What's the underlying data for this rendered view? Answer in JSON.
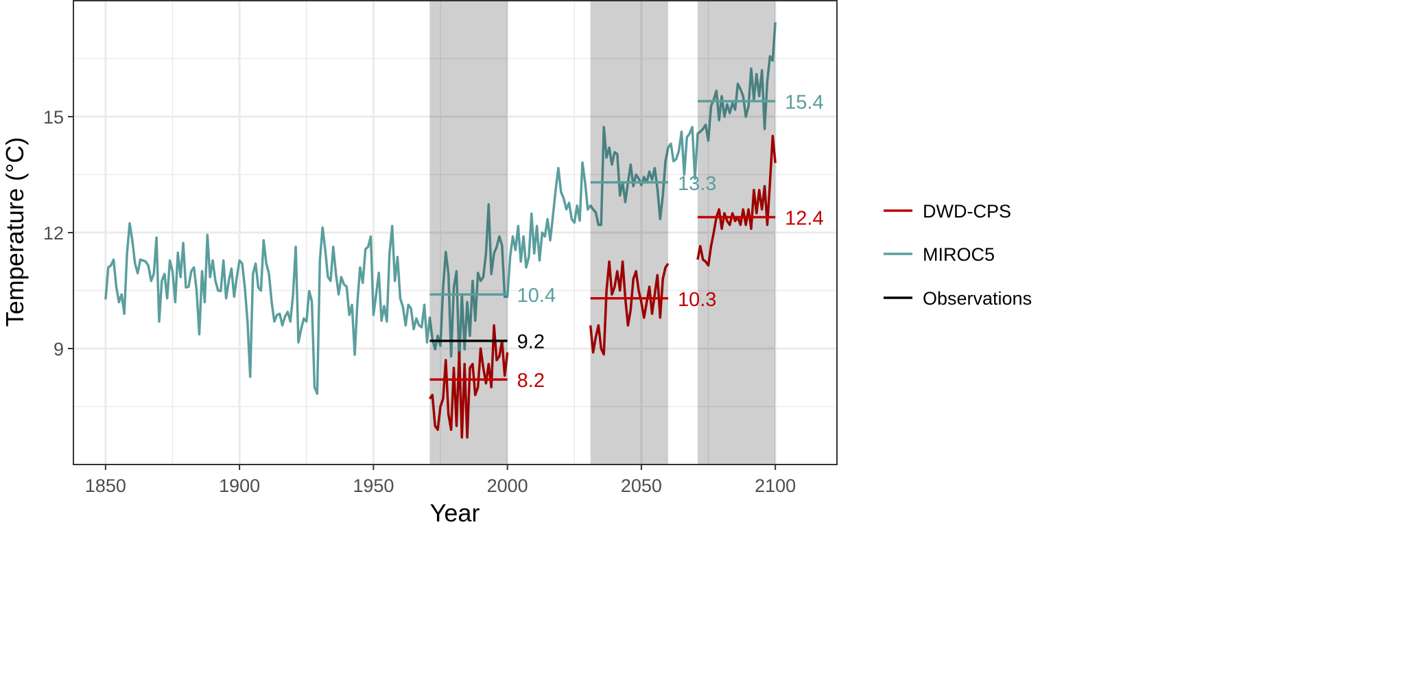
{
  "chart_data": {
    "type": "line",
    "title": "",
    "xlabel": "Year",
    "ylabel": "Temperature (°C)",
    "xlim": [
      1838,
      2123
    ],
    "ylim": [
      6.0,
      18.0
    ],
    "x_ticks": [
      1850,
      1900,
      1950,
      2000,
      2050,
      2100
    ],
    "x_tick_labels": [
      "1850",
      "1900",
      "1950",
      "2000",
      "2050",
      "2100"
    ],
    "y_ticks": [
      9,
      12,
      15
    ],
    "y_tick_labels": [
      "9",
      "12",
      "15"
    ],
    "grid": true,
    "legend_position": "right",
    "colors": {
      "DWD-CPS": "#c00000",
      "MIROC5": "#5b9e9e",
      "Observations": "#000000"
    },
    "shaded_periods": [
      [
        1971,
        2000
      ],
      [
        2031,
        2060
      ],
      [
        2071,
        2100
      ]
    ],
    "series": [
      {
        "name": "DWD-CPS",
        "segments": [
          {
            "start_year": 1971,
            "values": [
              7.7,
              7.8,
              7.0,
              6.9,
              7.5,
              7.7,
              8.7,
              7.3,
              6.9,
              8.5,
              7.0,
              8.9,
              6.7,
              8.6,
              6.7,
              8.5,
              8.6,
              7.8,
              8.0,
              9.0,
              8.5,
              8.1,
              8.6,
              8.0,
              9.6,
              8.7,
              8.8,
              9.2,
              8.3,
              8.9
            ]
          },
          {
            "start_year": 2031,
            "values": [
              9.6,
              8.9,
              9.3,
              9.6,
              9.0,
              8.85,
              10.5,
              11.25,
              10.4,
              10.6,
              11.0,
              10.5,
              11.25,
              10.3,
              9.6,
              10.0,
              10.8,
              11.0,
              10.5,
              10.2,
              9.8,
              10.2,
              10.6,
              9.9,
              10.4,
              10.9,
              9.8,
              10.8,
              11.1,
              11.2
            ]
          },
          {
            "start_year": 2071,
            "values": [
              11.3,
              11.65,
              11.3,
              11.25,
              11.15,
              11.65,
              12.0,
              12.4,
              12.6,
              12.1,
              12.5,
              12.3,
              12.2,
              12.5,
              12.3,
              12.4,
              12.2,
              12.6,
              12.2,
              12.6,
              12.1,
              13.1,
              12.5,
              13.1,
              12.6,
              13.2,
              12.2,
              13.3,
              14.5,
              13.8
            ]
          }
        ]
      },
      {
        "name": "MIROC5",
        "segments": [
          {
            "start_year": 1850,
            "values": [
              10.27,
              11.1,
              11.15,
              11.3,
              10.6,
              10.2,
              10.4,
              9.9,
              11.45,
              12.24,
              11.8,
              11.2,
              10.95,
              11.3,
              11.28,
              11.25,
              11.14,
              10.75,
              10.93,
              11.87,
              9.7,
              10.75,
              10.93,
              10.3,
              11.28,
              11.0,
              10.2,
              11.48,
              10.85,
              11.73,
              10.58,
              10.6,
              11.0,
              11.1,
              10.5,
              9.37,
              11.0,
              10.2,
              11.94,
              10.85,
              11.28,
              10.75,
              10.5,
              10.49,
              11.28,
              10.3,
              10.75,
              11.07,
              10.34,
              10.85,
              11.28,
              11.2,
              10.58,
              9.7,
              8.27,
              10.93,
              11.2,
              10.58,
              10.5,
              11.8,
              11.2,
              10.93,
              10.2,
              9.7,
              9.87,
              9.9,
              9.6,
              9.83,
              9.95,
              9.7,
              10.4,
              11.63,
              9.16,
              9.5,
              9.78,
              9.7,
              10.49,
              10.22,
              8.0,
              7.83,
              11.28,
              12.13,
              11.55,
              10.85,
              10.75,
              11.63,
              10.93,
              10.4,
              10.85,
              10.66,
              10.6,
              9.87,
              10.13,
              8.84,
              10.2,
              11.1,
              10.7,
              11.57,
              11.63,
              11.9,
              9.87,
              10.4,
              10.96,
              9.72,
              10.1,
              9.7,
              11.46,
              12.17,
              10.75,
              11.37,
              10.3,
              10.08,
              9.6,
              10.13,
              10.04,
              9.5,
              9.78,
              9.6,
              9.55,
              10.13,
              9.16,
              9.8,
              9.25,
              8.98,
              9.33,
              9.07,
              10.58,
              11.5,
              10.93,
              8.8,
              10.58,
              11.0,
              8.63,
              10.4,
              8.98,
              10.2,
              9.33,
              10.75,
              9.72,
              10.96,
              10.75,
              10.85,
              11.46,
              12.73,
              10.93,
              11.46,
              11.63,
              11.9,
              11.67,
              10.34,
              10.34,
              11.37,
              11.9,
              11.55,
              12.17,
              11.25,
              11.9,
              11.1,
              11.37,
              12.49,
              11.46,
              12.17,
              11.28,
              12.0,
              11.9,
              12.35,
              11.8,
              12.43,
              13.09,
              13.67,
              13.05,
              12.88,
              12.6,
              12.77,
              12.35,
              12.26,
              12.7,
              12.31,
              13.81,
              13.3,
              12.6,
              12.7,
              12.6,
              12.52,
              12.2,
              12.2,
              14.73,
              13.94,
              14.2,
              13.76,
              14.08,
              14.03,
              12.96,
              13.3,
              12.79,
              13.3,
              13.76,
              13.2,
              13.5,
              13.4,
              13.23,
              13.44,
              13.3,
              13.58,
              13.37,
              13.67,
              13.14,
              12.35,
              12.96,
              13.85,
              14.2,
              14.3,
              13.85,
              13.9,
              14.12,
              14.61,
              13.5,
              14.47,
              14.56,
              14.73,
              13.4,
              14.56,
              14.61,
              14.68,
              14.79,
              14.38,
              15.27,
              15.44,
              15.67,
              14.91,
              15.53,
              15.0,
              15.32,
              15.09,
              15.35,
              15.18,
              15.85,
              15.71,
              15.53,
              15.0,
              15.27,
              16.24,
              15.44,
              16.1,
              15.53,
              16.2,
              14.68,
              15.92,
              16.56,
              16.45,
              17.44
            ]
          }
        ]
      },
      {
        "name": "Observations",
        "segments": []
      }
    ],
    "period_means": [
      {
        "series": "MIROC5",
        "period": [
          1971,
          2000
        ],
        "value": 10.4,
        "label": "10.4"
      },
      {
        "series": "Observations",
        "period": [
          1971,
          2000
        ],
        "value": 9.2,
        "label": "9.2"
      },
      {
        "series": "DWD-CPS",
        "period": [
          1971,
          2000
        ],
        "value": 8.2,
        "label": "8.2"
      },
      {
        "series": "MIROC5",
        "period": [
          2031,
          2060
        ],
        "value": 13.3,
        "label": "13.3"
      },
      {
        "series": "DWD-CPS",
        "period": [
          2031,
          2060
        ],
        "value": 10.3,
        "label": "10.3"
      },
      {
        "series": "MIROC5",
        "period": [
          2071,
          2100
        ],
        "value": 15.4,
        "label": "15.4"
      },
      {
        "series": "DWD-CPS",
        "period": [
          2071,
          2100
        ],
        "value": 12.4,
        "label": "12.4"
      }
    ],
    "legend": [
      "DWD-CPS",
      "MIROC5",
      "Observations"
    ]
  }
}
